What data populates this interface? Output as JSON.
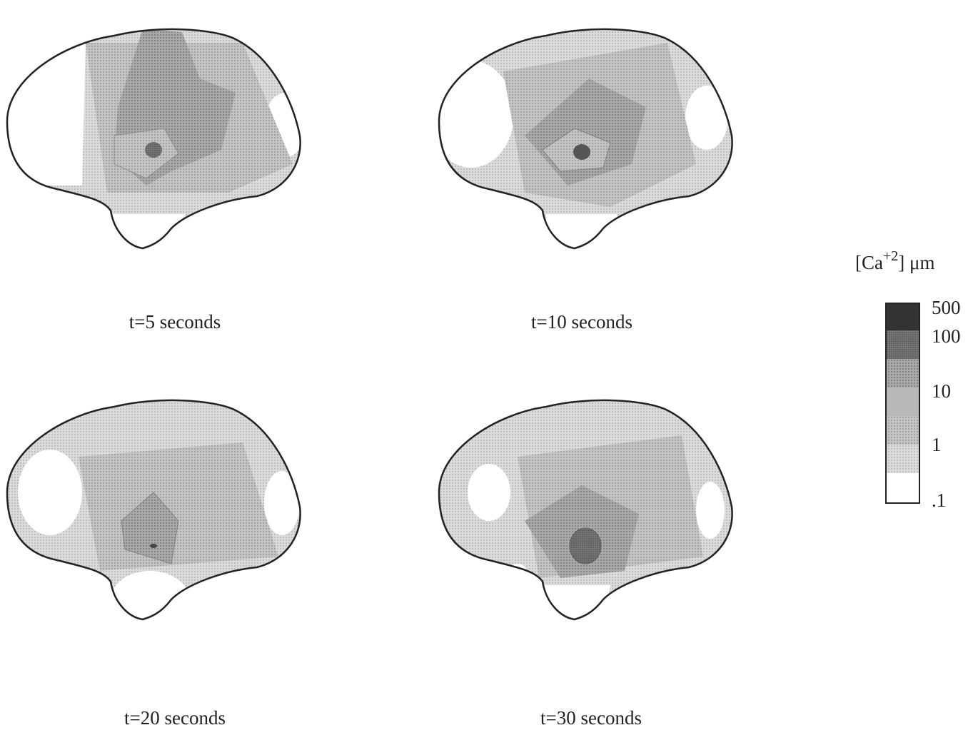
{
  "panels": [
    {
      "caption": "t=5 seconds"
    },
    {
      "caption": "t=10 seconds"
    },
    {
      "caption": "t=20 seconds"
    },
    {
      "caption": "t=30 seconds"
    }
  ],
  "legend": {
    "title": {
      "base": "[Ca",
      "superscript": "+2",
      "suffix": "] μm"
    },
    "labels": [
      "500",
      "100",
      "10",
      "1",
      ".1"
    ]
  }
}
